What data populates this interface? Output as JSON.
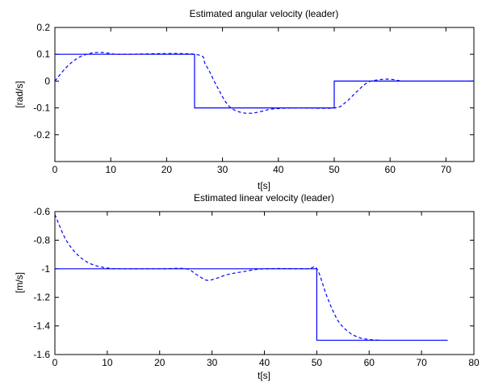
{
  "chart_data": [
    {
      "type": "line",
      "title": "Estimated angular velocity (leader)",
      "xlabel": "t[s]",
      "ylabel": "[rad/s]",
      "xlim": [
        0,
        75
      ],
      "ylim": [
        -0.3,
        0.2
      ],
      "xticks": [
        0,
        10,
        20,
        30,
        40,
        50,
        60,
        70
      ],
      "yticks": [
        0.2,
        0.1,
        0,
        -0.1,
        -0.2
      ],
      "ytick_labels": [
        "0.2",
        "0.1",
        "0",
        "-0.1",
        "-0.2"
      ],
      "grid": false,
      "series": [
        {
          "style": "solid",
          "color": "#0000ff",
          "x": [
            0,
            25,
            25,
            50,
            50,
            75
          ],
          "y": [
            0.1,
            0.1,
            -0.1,
            -0.1,
            0,
            0
          ]
        },
        {
          "style": "dashed",
          "color": "#0000ff",
          "x": [
            0,
            2,
            4,
            6,
            8,
            10,
            12,
            25,
            27,
            29,
            31,
            33,
            35,
            37,
            39,
            43,
            50,
            52,
            54,
            56,
            58,
            60,
            62
          ],
          "y": [
            0.0,
            0.05,
            0.085,
            0.102,
            0.107,
            0.103,
            0.1,
            0.1,
            0.06,
            -0.02,
            -0.09,
            -0.115,
            -0.12,
            -0.113,
            -0.104,
            -0.1,
            -0.1,
            -0.08,
            -0.04,
            -0.005,
            0.005,
            0.007,
            0.0
          ]
        }
      ]
    },
    {
      "type": "line",
      "title": "Estimated linear velocity (leader)",
      "xlabel": "t[s]",
      "ylabel": "[m/s]",
      "xlim": [
        0,
        80
      ],
      "ylim": [
        -1.6,
        -0.6
      ],
      "xticks": [
        0,
        10,
        20,
        30,
        40,
        50,
        60,
        70,
        80
      ],
      "yticks": [
        -0.6,
        -0.8,
        -1,
        -1.2,
        -1.4,
        -1.6
      ],
      "ytick_labels": [
        "-0.6",
        "-0.8",
        "-1",
        "-1.2",
        "-1.4",
        "-1.6"
      ],
      "grid": false,
      "series": [
        {
          "style": "solid",
          "color": "#0000ff",
          "x": [
            0,
            50,
            50,
            75
          ],
          "y": [
            -1,
            -1,
            -1.5,
            -1.5
          ]
        },
        {
          "style": "dashed",
          "color": "#0000ff",
          "x": [
            0,
            2,
            4,
            6,
            8,
            10,
            12,
            20,
            25,
            27,
            29,
            31,
            33,
            36,
            40,
            48,
            50,
            52,
            54,
            56,
            58,
            60,
            62
          ],
          "y": [
            -0.62,
            -0.79,
            -0.89,
            -0.95,
            -0.98,
            -0.995,
            -1.0,
            -1.0,
            -1.0,
            -1.04,
            -1.08,
            -1.065,
            -1.04,
            -1.02,
            -1.0,
            -1.0,
            -1.0,
            -1.2,
            -1.36,
            -1.44,
            -1.48,
            -1.495,
            -1.5
          ]
        }
      ]
    }
  ]
}
